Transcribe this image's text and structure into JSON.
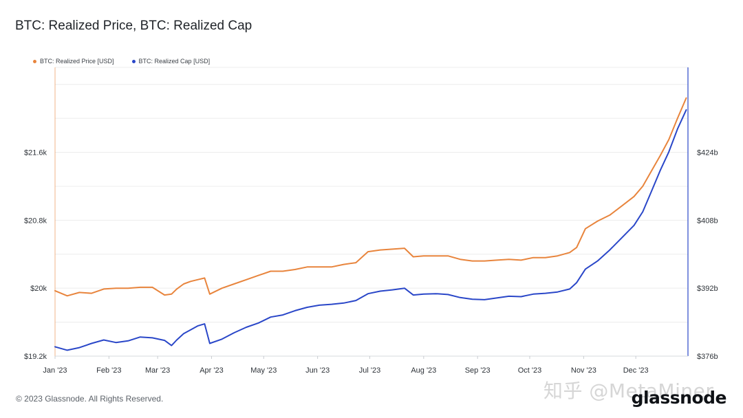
{
  "title": "BTC: Realized Price, BTC: Realized Cap",
  "footer": "© 2023 Glassnode. All Rights Reserved.",
  "watermark": "知乎 @MetaMiner",
  "logo": "glassnode",
  "legend": [
    {
      "label": "BTC: Realized Price [USD]",
      "color": "#e8843c"
    },
    {
      "label": "BTC: Realized Cap [USD]",
      "color": "#2946c8"
    }
  ],
  "chart_data": {
    "type": "line",
    "title": "BTC: Realized Price, BTC: Realized Cap",
    "x_ticks": [
      "Jan '23",
      "Feb '23",
      "Mar '23",
      "Apr '23",
      "May '23",
      "Jun '23",
      "Jul '23",
      "Aug '23",
      "Sep '23",
      "Oct '23",
      "Nov '23",
      "Dec '23"
    ],
    "x_range": [
      "2023-01-01",
      "2023-12-31"
    ],
    "y_left": {
      "ticks": [
        "$19.2k",
        "$20k",
        "$20.8k",
        "$21.6k"
      ],
      "range": [
        19200,
        22600
      ]
    },
    "y_right": {
      "ticks": [
        "$376b",
        "$392b",
        "$408b",
        "$424b"
      ],
      "range": [
        376,
        444
      ]
    },
    "grid": true,
    "series": [
      {
        "name": "BTC: Realized Price [USD]",
        "color": "#e8843c",
        "axis": "left",
        "x": [
          "2023-01-01",
          "2023-01-08",
          "2023-01-15",
          "2023-01-22",
          "2023-01-29",
          "2023-02-05",
          "2023-02-12",
          "2023-02-19",
          "2023-02-26",
          "2023-03-05",
          "2023-03-09",
          "2023-03-12",
          "2023-03-16",
          "2023-03-20",
          "2023-03-24",
          "2023-03-28",
          "2023-03-31",
          "2023-04-07",
          "2023-04-14",
          "2023-04-21",
          "2023-04-28",
          "2023-05-05",
          "2023-05-12",
          "2023-05-19",
          "2023-05-26",
          "2023-06-02",
          "2023-06-09",
          "2023-06-16",
          "2023-06-23",
          "2023-06-30",
          "2023-07-07",
          "2023-07-14",
          "2023-07-21",
          "2023-07-26",
          "2023-08-01",
          "2023-08-08",
          "2023-08-15",
          "2023-08-22",
          "2023-08-29",
          "2023-09-05",
          "2023-09-12",
          "2023-09-19",
          "2023-09-26",
          "2023-10-03",
          "2023-10-10",
          "2023-10-17",
          "2023-10-24",
          "2023-10-28",
          "2023-11-02",
          "2023-11-09",
          "2023-11-16",
          "2023-11-23",
          "2023-11-30",
          "2023-12-05",
          "2023-12-10",
          "2023-12-15",
          "2023-12-20",
          "2023-12-25",
          "2023-12-30"
        ],
        "values": [
          19970,
          19910,
          19950,
          19940,
          19990,
          20000,
          20000,
          20010,
          20010,
          19920,
          19930,
          19990,
          20050,
          20080,
          20100,
          20120,
          19930,
          20000,
          20050,
          20100,
          20150,
          20200,
          20200,
          20220,
          20250,
          20250,
          20250,
          20280,
          20300,
          20430,
          20450,
          20460,
          20470,
          20370,
          20380,
          20380,
          20380,
          20340,
          20320,
          20320,
          20330,
          20340,
          20330,
          20360,
          20360,
          20380,
          20420,
          20480,
          20700,
          20790,
          20860,
          20970,
          21080,
          21200,
          21380,
          21560,
          21750,
          22000,
          22240
        ]
      },
      {
        "name": "BTC: Realized Cap [USD]",
        "color": "#2946c8",
        "axis": "right",
        "x": [
          "2023-01-01",
          "2023-01-08",
          "2023-01-15",
          "2023-01-22",
          "2023-01-29",
          "2023-02-05",
          "2023-02-12",
          "2023-02-19",
          "2023-02-26",
          "2023-03-05",
          "2023-03-09",
          "2023-03-12",
          "2023-03-16",
          "2023-03-20",
          "2023-03-24",
          "2023-03-28",
          "2023-03-31",
          "2023-04-07",
          "2023-04-14",
          "2023-04-21",
          "2023-04-28",
          "2023-05-05",
          "2023-05-12",
          "2023-05-19",
          "2023-05-26",
          "2023-06-02",
          "2023-06-09",
          "2023-06-16",
          "2023-06-23",
          "2023-06-30",
          "2023-07-07",
          "2023-07-14",
          "2023-07-21",
          "2023-07-26",
          "2023-08-01",
          "2023-08-08",
          "2023-08-15",
          "2023-08-22",
          "2023-08-29",
          "2023-09-05",
          "2023-09-12",
          "2023-09-19",
          "2023-09-26",
          "2023-10-03",
          "2023-10-10",
          "2023-10-17",
          "2023-10-24",
          "2023-10-28",
          "2023-11-02",
          "2023-11-09",
          "2023-11-16",
          "2023-11-23",
          "2023-11-30",
          "2023-12-05",
          "2023-12-10",
          "2023-12-15",
          "2023-12-20",
          "2023-12-25",
          "2023-12-30"
        ],
        "values": [
          378.2,
          377.4,
          378.0,
          379.0,
          379.8,
          379.2,
          379.6,
          380.5,
          380.3,
          379.7,
          378.5,
          379.8,
          381.3,
          382.2,
          383.1,
          383.6,
          379.0,
          380.0,
          381.5,
          382.8,
          383.8,
          385.2,
          385.7,
          386.7,
          387.5,
          388.0,
          388.2,
          388.5,
          389.1,
          390.7,
          391.3,
          391.6,
          392.0,
          390.4,
          390.6,
          390.7,
          390.5,
          389.8,
          389.4,
          389.3,
          389.7,
          390.1,
          390.0,
          390.6,
          390.8,
          391.1,
          391.8,
          393.3,
          396.5,
          398.4,
          401.0,
          403.9,
          406.8,
          410.0,
          414.8,
          419.7,
          424.1,
          429.5,
          434.0
        ]
      }
    ]
  }
}
